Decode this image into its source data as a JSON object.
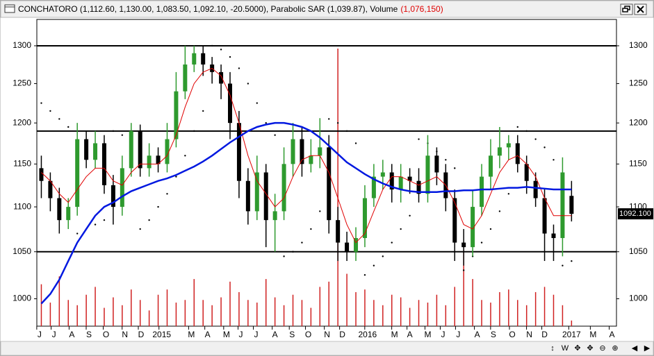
{
  "chart_data": {
    "type": "candlestick",
    "title": "CONCHATORO (1,112.60, 1,130.00, 1,083.50, 1,092.10, -20.5000), Parabolic SAR (1,039.87), Volume",
    "volume_title": "(1,076,150)",
    "log_scale": true,
    "ylim": [
      972,
      1336
    ],
    "yticks": [
      1000,
      1050,
      1100,
      1150,
      1200,
      1250,
      1300
    ],
    "xlim": [
      -0.5,
      64
    ],
    "xticks": [
      {
        "value": -0.2,
        "label": "J"
      },
      {
        "value": 1.4,
        "label": "J"
      },
      {
        "value": 3.4,
        "label": "A"
      },
      {
        "value": 5.3,
        "label": "S"
      },
      {
        "value": 7.2,
        "label": "O"
      },
      {
        "value": 9.3,
        "label": "N"
      },
      {
        "value": 11.1,
        "label": "D"
      },
      {
        "value": 13.4,
        "label": "2015"
      },
      {
        "value": 16.7,
        "label": "M"
      },
      {
        "value": 18.5,
        "label": "A"
      },
      {
        "value": 20.6,
        "label": "M"
      },
      {
        "value": 22.2,
        "label": "J"
      },
      {
        "value": 23.9,
        "label": "J"
      },
      {
        "value": 26.0,
        "label": "A"
      },
      {
        "value": 27.9,
        "label": "S"
      },
      {
        "value": 29.7,
        "label": "O"
      },
      {
        "value": 31.8,
        "label": "N"
      },
      {
        "value": 33.5,
        "label": "D"
      },
      {
        "value": 36.3,
        "label": "2016"
      },
      {
        "value": 39.3,
        "label": "M"
      },
      {
        "value": 41.0,
        "label": "A"
      },
      {
        "value": 43.0,
        "label": "M"
      },
      {
        "value": 44.7,
        "label": "J"
      },
      {
        "value": 46.4,
        "label": "J"
      },
      {
        "value": 48.5,
        "label": "A"
      },
      {
        "value": 50.3,
        "label": "S"
      },
      {
        "value": 52.4,
        "label": "O"
      },
      {
        "value": 54.3,
        "label": "N"
      },
      {
        "value": 56.0,
        "label": "D"
      },
      {
        "value": 59.0,
        "label": "2017"
      },
      {
        "value": 61.4,
        "label": "M"
      },
      {
        "value": 63.5,
        "label": "A"
      }
    ],
    "hlines": [
      1300,
      1190,
      1050
    ],
    "candles": {
      "up_color": "#2e9a2e",
      "down_color": "#000000",
      "open": [
        1145,
        1130,
        1110,
        1085,
        1100,
        1180,
        1155,
        1175,
        1125,
        1100,
        1145,
        1190,
        1145,
        1160,
        1150,
        1180,
        1240,
        1275,
        1290,
        1275,
        1265,
        1250,
        1200,
        1130,
        1095,
        1140,
        1085,
        1095,
        1150,
        1180,
        1150,
        1160,
        1170,
        1085,
        1060,
        1050,
        1065,
        1110,
        1135,
        1140,
        1120,
        1135,
        1130,
        1115,
        1160,
        1140,
        1110,
        1060,
        1055,
        1100,
        1135,
        1160,
        1170,
        1175,
        1150,
        1130,
        1110,
        1070,
        1065,
        1112.6
      ],
      "high": [
        1160,
        1140,
        1122,
        1110,
        1200,
        1190,
        1190,
        1185,
        1137,
        1160,
        1200,
        1198,
        1175,
        1170,
        1200,
        1265,
        1300,
        1300,
        1300,
        1285,
        1275,
        1265,
        1215,
        1145,
        1160,
        1150,
        1115,
        1170,
        1200,
        1195,
        1180,
        1206,
        1185,
        1100,
        1072,
        1077,
        1125,
        1150,
        1155,
        1150,
        1150,
        1145,
        1145,
        1185,
        1170,
        1150,
        1120,
        1075,
        1120,
        1150,
        1180,
        1195,
        1185,
        1185,
        1160,
        1140,
        1120,
        1080,
        1158,
        1130
      ],
      "low": [
        1110,
        1095,
        1070,
        1075,
        1090,
        1145,
        1145,
        1115,
        1080,
        1090,
        1135,
        1135,
        1135,
        1140,
        1140,
        1170,
        1230,
        1265,
        1260,
        1250,
        1230,
        1180,
        1110,
        1080,
        1085,
        1055,
        1050,
        1085,
        1135,
        1135,
        1140,
        1145,
        1070,
        1040,
        1040,
        1040,
        1055,
        1100,
        1120,
        1105,
        1105,
        1115,
        1105,
        1105,
        1125,
        1095,
        1040,
        1035,
        1045,
        1090,
        1120,
        1145,
        1155,
        1140,
        1115,
        1100,
        1040,
        1040,
        1045,
        1083.5
      ],
      "close": [
        1130,
        1110,
        1085,
        1100,
        1180,
        1155,
        1175,
        1125,
        1100,
        1145,
        1190,
        1145,
        1160,
        1150,
        1180,
        1240,
        1275,
        1290,
        1275,
        1265,
        1250,
        1200,
        1130,
        1095,
        1140,
        1085,
        1095,
        1150,
        1180,
        1150,
        1160,
        1170,
        1085,
        1060,
        1050,
        1065,
        1110,
        1135,
        1140,
        1120,
        1135,
        1130,
        1115,
        1160,
        1140,
        1110,
        1060,
        1055,
        1100,
        1135,
        1160,
        1170,
        1175,
        1150,
        1130,
        1110,
        1070,
        1065,
        1140,
        1092.1
      ]
    },
    "lines": [
      {
        "color": "#e00000",
        "values": [
          1140,
          1130,
          1115,
          1105,
          1120,
          1135,
          1145,
          1145,
          1130,
          1125,
          1140,
          1150,
          1150,
          1150,
          1160,
          1185,
          1220,
          1250,
          1265,
          1270,
          1260,
          1235,
          1200,
          1160,
          1130,
          1115,
          1100,
          1110,
          1135,
          1155,
          1160,
          1160,
          1140,
          1110,
          1080,
          1060,
          1070,
          1095,
          1120,
          1135,
          1135,
          1130,
          1125,
          1130,
          1135,
          1125,
          1105,
          1080,
          1075,
          1090,
          1115,
          1140,
          1155,
          1160,
          1150,
          1135,
          1110,
          1090,
          1090,
          1090
        ]
      },
      {
        "color": "#0018e0",
        "values": [
          995,
          1005,
          1020,
          1040,
          1060,
          1075,
          1090,
          1100,
          1105,
          1112,
          1118,
          1122,
          1126,
          1130,
          1133,
          1137,
          1142,
          1147,
          1153,
          1160,
          1168,
          1176,
          1183,
          1190,
          1195,
          1198,
          1200,
          1200,
          1198,
          1195,
          1190,
          1182,
          1172,
          1162,
          1152,
          1145,
          1138,
          1132,
          1127,
          1123,
          1120,
          1118,
          1117,
          1117,
          1117,
          1118,
          1118,
          1119,
          1119,
          1120,
          1120,
          1121,
          1122,
          1122,
          1123,
          1122,
          1121,
          1120,
          1120,
          1120
        ]
      }
    ],
    "sar": {
      "color": "#000000",
      "values": [
        1225,
        1215,
        1205,
        1195,
        1070,
        1075,
        1080,
        1085,
        1190,
        1185,
        1180,
        1075,
        1085,
        1100,
        1115,
        1135,
        1160,
        1190,
        1215,
        1300,
        1295,
        1285,
        1270,
        1250,
        1225,
        1200,
        1185,
        1045,
        1050,
        1060,
        1075,
        1095,
        1205,
        1200,
        1190,
        1175,
        1025,
        1035,
        1045,
        1060,
        1075,
        1090,
        1180,
        1175,
        1165,
        1155,
        1145,
        1030,
        1045,
        1060,
        1075,
        1095,
        1115,
        1195,
        1190,
        1180,
        1170,
        1155,
        1035,
        1039.87
      ]
    },
    "volume": {
      "color": "#d02020",
      "values": [
        8000000,
        4500000,
        9500000,
        5000000,
        4000000,
        6000000,
        7500000,
        3500000,
        5500000,
        4000000,
        7000000,
        5000000,
        3000000,
        6000000,
        7000000,
        4500000,
        5000000,
        9000000,
        5000000,
        4000000,
        5500000,
        8500000,
        6500000,
        5000000,
        4500000,
        9000000,
        5500000,
        4000000,
        6000000,
        5000000,
        3500000,
        7500000,
        8500000,
        53000000,
        10000000,
        6500000,
        7000000,
        5000000,
        4000000,
        6000000,
        5500000,
        3500000,
        5000000,
        4500000,
        6000000,
        4000000,
        7500000,
        14500000,
        9000000,
        5000000,
        4500000,
        6500000,
        7000000,
        5000000,
        4000000,
        6500000,
        7500000,
        6000000,
        4000000,
        1076150
      ]
    },
    "last_price": {
      "value": 1092.1,
      "label": "1092.100"
    },
    "toolbar": [
      "↕",
      "W",
      "✥",
      "✥",
      "⊖",
      "⊕",
      "◀",
      "▶"
    ]
  }
}
